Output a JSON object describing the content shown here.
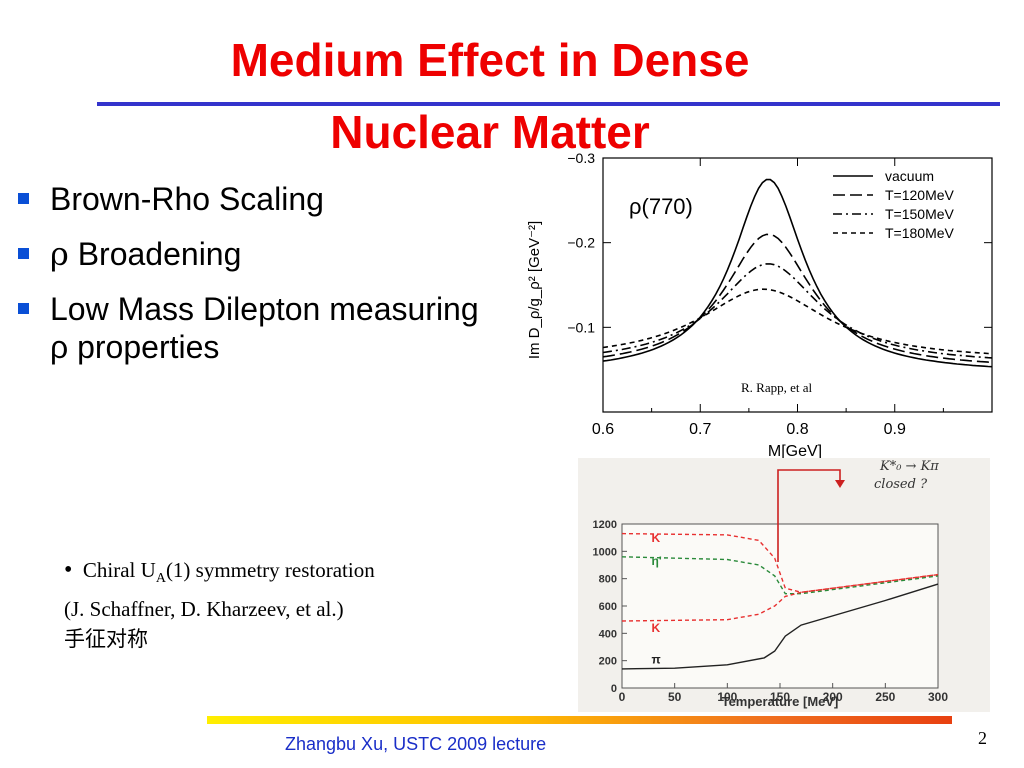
{
  "slide": {
    "title_line1": "Medium Effect in Dense",
    "title_line2": "Nuclear Matter",
    "bullets": [
      {
        "symbol": "",
        "text": "Brown-Rho Scaling"
      },
      {
        "symbol": "ρ",
        "text": " Broadening"
      },
      {
        "symbol": "",
        "text": "Low Mass Dilepton measuring ρ properties"
      }
    ],
    "sub_bullet": {
      "prefix": "Chiral U",
      "sub": "A",
      "suffix": "(1) symmetry restoration",
      "line2": "(J. Schaffner, D. Kharzeev, et al.)",
      "line3": "手征对称"
    },
    "footer": "Zhangbu Xu, USTC 2009 lecture",
    "page_number": "2"
  },
  "chart_data": [
    {
      "type": "line",
      "annotation": "ρ(770)",
      "credit": "R. Rapp, et al",
      "xlabel": "M[GeV]",
      "ylabel": "Im D_ρ/g_ρ² [GeV⁻²]",
      "xlim": [
        0.6,
        1.0
      ],
      "ylim": [
        -0.0,
        -0.3
      ],
      "x_ticks": [
        "0.6",
        "0.7",
        "0.8",
        "0.9"
      ],
      "y_ticks": [
        "−0.3",
        "−0.2",
        "−0.1"
      ],
      "legend_position": "top-right",
      "series": [
        {
          "name": "vacuum",
          "dash": "solid",
          "peak_x": 0.77,
          "peak_y": -0.275,
          "width": 0.045,
          "base": -0.045
        },
        {
          "name": "T=120MeV",
          "dash": "long-dash",
          "peak_x": 0.77,
          "peak_y": -0.21,
          "width": 0.055,
          "base": -0.05
        },
        {
          "name": "T=150MeV",
          "dash": "dash-dot",
          "peak_x": 0.77,
          "peak_y": -0.175,
          "width": 0.065,
          "base": -0.055
        },
        {
          "name": "T=180MeV",
          "dash": "short-dash",
          "peak_x": 0.765,
          "peak_y": -0.145,
          "width": 0.08,
          "base": -0.06
        }
      ]
    },
    {
      "type": "line",
      "handwritten_note_line1": "K*₀ → Kπ",
      "handwritten_note_line2": "closed ?",
      "xlabel": "Temperature [MeV]",
      "xlim": [
        0,
        300
      ],
      "ylim": [
        0,
        1200
      ],
      "x_ticks": [
        "0",
        "50",
        "100",
        "150",
        "200",
        "250",
        "300"
      ],
      "y_ticks": [
        "0",
        "200",
        "400",
        "600",
        "800",
        "1000",
        "1200"
      ],
      "colors": {
        "kaon": "#e83030",
        "eta": "#2a8a3a",
        "pion": "#222222",
        "arrow": "#cc2020"
      },
      "series": [
        {
          "name": "K",
          "label_x": 28,
          "label_y": 1070,
          "color": "#e83030",
          "dash": "dashed",
          "points": [
            [
              0,
              1130
            ],
            [
              100,
              1120
            ],
            [
              130,
              1080
            ],
            [
              145,
              950
            ],
            [
              155,
              730
            ],
            [
              170,
              700
            ],
            [
              250,
              780
            ],
            [
              300,
              830
            ]
          ]
        },
        {
          "name": "η'",
          "label_x": 28,
          "label_y": 900,
          "color": "#2a8a3a",
          "dash": "dashed",
          "points": [
            [
              0,
              960
            ],
            [
              100,
              940
            ],
            [
              130,
              900
            ],
            [
              145,
              820
            ],
            [
              155,
              690
            ],
            [
              170,
              690
            ],
            [
              250,
              770
            ],
            [
              300,
              820
            ]
          ]
        },
        {
          "name": "K",
          "label_x": 28,
          "label_y": 410,
          "color": "#e83030",
          "dash": "dashed",
          "points": [
            [
              0,
              490
            ],
            [
              100,
              500
            ],
            [
              130,
              540
            ],
            [
              145,
              600
            ],
            [
              155,
              670
            ],
            [
              170,
              700
            ],
            [
              250,
              780
            ],
            [
              300,
              830
            ]
          ]
        },
        {
          "name": "π",
          "label_x": 28,
          "label_y": 180,
          "color": "#222222",
          "dash": "solid",
          "points": [
            [
              0,
              140
            ],
            [
              50,
              145
            ],
            [
              100,
              170
            ],
            [
              135,
              220
            ],
            [
              145,
              270
            ],
            [
              155,
              380
            ],
            [
              170,
              460
            ],
            [
              250,
              640
            ],
            [
              300,
              760
            ]
          ]
        }
      ]
    }
  ]
}
